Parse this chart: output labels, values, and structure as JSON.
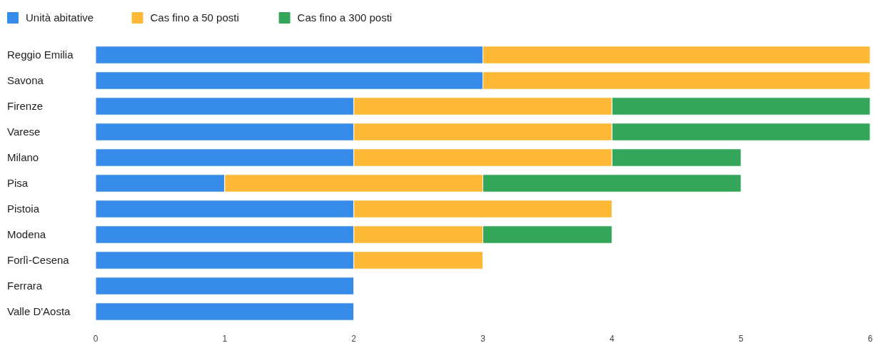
{
  "chart_data": {
    "type": "bar",
    "orientation": "horizontal",
    "stacked": true,
    "legend": "top left",
    "grid": false,
    "categories": [
      "Reggio Emilia",
      "Savona",
      "Firenze",
      "Varese",
      "Milano",
      "Pisa",
      "Pistoia",
      "Modena",
      "Forlì-Cesena",
      "Ferrara",
      "Valle D'Aosta"
    ],
    "series": [
      {
        "name": "Unità abitative",
        "color": "#368be9",
        "values": [
          3,
          3,
          2,
          2,
          2,
          1,
          2,
          2,
          2,
          2,
          2
        ]
      },
      {
        "name": "Cas fino a 50 posti",
        "color": "#fdb935",
        "values": [
          3,
          3,
          2,
          2,
          2,
          2,
          2,
          1,
          1,
          null,
          null
        ]
      },
      {
        "name": "Cas fino a 300 posti",
        "color": "#34a65a",
        "values": [
          null,
          null,
          2,
          2,
          1,
          2,
          null,
          1,
          null,
          null,
          null
        ]
      }
    ],
    "xlim": [
      0,
      6
    ],
    "xticks": [
      0,
      1,
      2,
      3,
      4,
      5,
      6
    ]
  }
}
